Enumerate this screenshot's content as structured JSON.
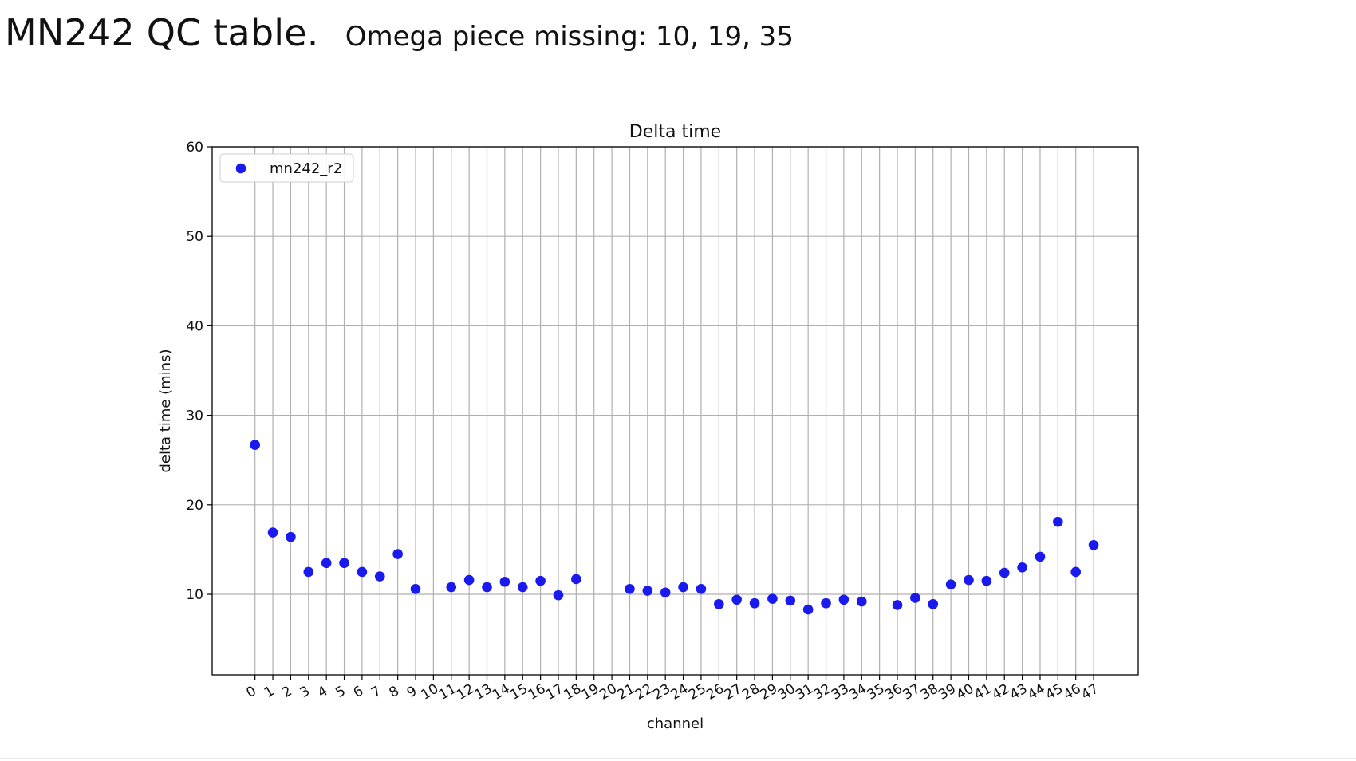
{
  "slide": {
    "title": "MN242 QC table.",
    "subtitle": "Omega piece missing: 10, 19, 35"
  },
  "chart_data": {
    "type": "scatter",
    "title": "Delta time",
    "xlabel": "channel",
    "ylabel": "delta time (mins)",
    "xlim": [
      -2.4,
      49.5
    ],
    "ylim": [
      1,
      60
    ],
    "yticks": [
      10,
      20,
      30,
      40,
      50,
      60
    ],
    "xticks": [
      0,
      1,
      2,
      3,
      4,
      5,
      6,
      7,
      8,
      9,
      10,
      11,
      12,
      13,
      14,
      15,
      16,
      17,
      18,
      19,
      20,
      21,
      22,
      23,
      24,
      25,
      26,
      27,
      28,
      29,
      30,
      31,
      32,
      33,
      34,
      35,
      36,
      37,
      38,
      39,
      40,
      41,
      42,
      43,
      44,
      45,
      46,
      47
    ],
    "grid": true,
    "legend_position": "upper-left",
    "series": [
      {
        "name": "mn242_r2",
        "color": "#1a1aee",
        "x": [
          0,
          1,
          2,
          3,
          4,
          5,
          6,
          7,
          8,
          9,
          11,
          12,
          13,
          14,
          15,
          16,
          17,
          18,
          21,
          22,
          23,
          24,
          25,
          26,
          27,
          28,
          29,
          30,
          31,
          32,
          33,
          34,
          36,
          37,
          38,
          39,
          40,
          41,
          42,
          43,
          44,
          45,
          46,
          47
        ],
        "y": [
          26.7,
          16.9,
          16.4,
          12.5,
          13.5,
          13.5,
          12.5,
          12.0,
          14.5,
          10.6,
          10.8,
          11.6,
          10.8,
          11.4,
          10.8,
          11.5,
          9.9,
          11.7,
          10.6,
          10.4,
          10.2,
          10.8,
          10.6,
          8.9,
          9.4,
          9.0,
          9.5,
          9.3,
          8.3,
          9.0,
          9.4,
          9.2,
          8.8,
          9.6,
          8.9,
          11.1,
          11.6,
          11.5,
          12.4,
          13.0,
          14.2,
          18.1,
          12.5,
          15.5
        ]
      }
    ]
  }
}
